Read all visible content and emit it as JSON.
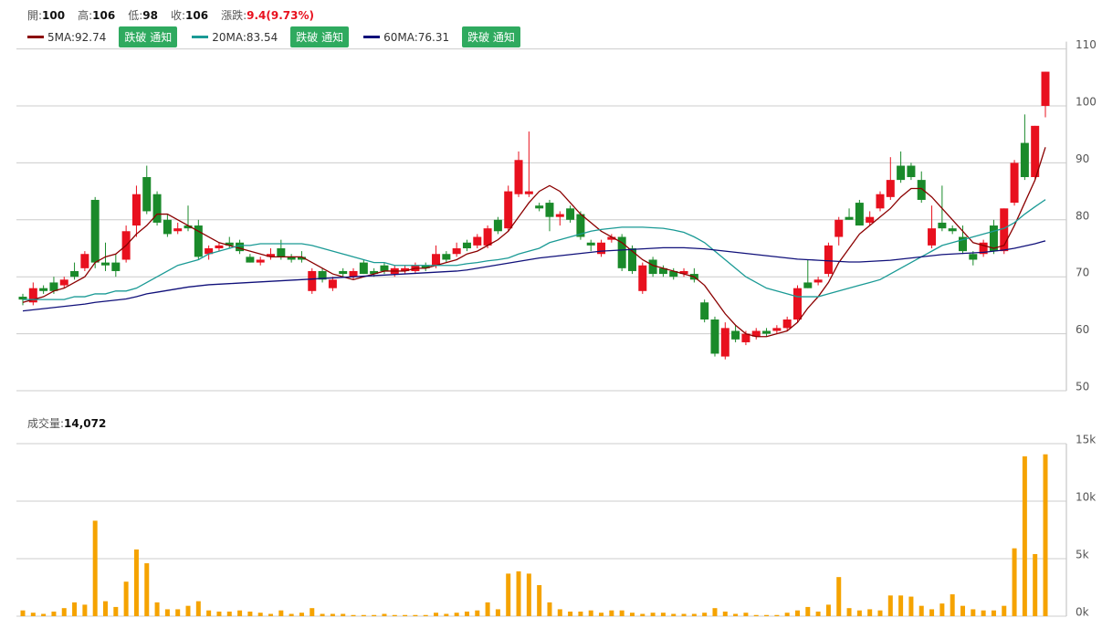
{
  "chart_data": [
    {
      "type": "candlestick",
      "stats": [
        {
          "label": "開:",
          "value": 100
        },
        {
          "label": "高:",
          "value": 106
        },
        {
          "label": "低:",
          "value": 98
        },
        {
          "label": "收:",
          "value": 106
        },
        {
          "label": "漲跌:",
          "value": "9.4(9.73%)"
        }
      ],
      "alert_button": "跌破 通知",
      "up_color": "#e8101e",
      "down_color": "#1a8a2a",
      "ylim": [
        50,
        110
      ],
      "yticks": [
        50,
        60,
        70,
        80,
        90,
        100,
        110
      ],
      "grid": true,
      "open": [
        66.5,
        65.5,
        68,
        69,
        68.5,
        71,
        71.5,
        83.5,
        72.5,
        72.5,
        73,
        79,
        87.5,
        84.5,
        80,
        78,
        79,
        79,
        74,
        75,
        76,
        76,
        73.5,
        72.5,
        73.5,
        75,
        73.5,
        73.5,
        67.5,
        71,
        68,
        71,
        70,
        72.5,
        71,
        72,
        70.5,
        71,
        71,
        72,
        72,
        74,
        74,
        76,
        75.5,
        75.5,
        80,
        78.5,
        84.5,
        84.5,
        82.5,
        83,
        80.5,
        82,
        81,
        76,
        74,
        76.5,
        77,
        75,
        67.5,
        73,
        71.5,
        71,
        70.5,
        70.5,
        65.5,
        62.5,
        56,
        60.5,
        58.5,
        59.5,
        60.5,
        60.5,
        61,
        62.5,
        69,
        69,
        70.5,
        77,
        80.5,
        83,
        79.5,
        82,
        84,
        89.5,
        89.5,
        87,
        75.5,
        79.5,
        78.5,
        77,
        74,
        74,
        79,
        74.5,
        83,
        93.5,
        87.5,
        100
      ],
      "high": [
        67,
        69,
        68.5,
        70,
        70,
        72.5,
        74.5,
        84,
        76,
        74,
        79,
        86,
        89.5,
        85,
        81,
        79.5,
        82.5,
        80,
        75.5,
        76,
        77,
        76.5,
        74,
        73.5,
        75,
        76.5,
        74,
        74.5,
        71.5,
        71.5,
        70,
        71.5,
        71.5,
        73,
        71.5,
        72.5,
        72,
        72,
        72.5,
        72.5,
        75.5,
        74.5,
        76,
        76.5,
        77.5,
        79,
        80.5,
        86,
        92,
        95.5,
        83,
        83.5,
        81.5,
        82.5,
        81.5,
        76.5,
        76.5,
        77.5,
        77.5,
        75.5,
        72.5,
        73.5,
        72,
        71.5,
        71.5,
        71.5,
        66,
        63,
        62,
        61.5,
        60.5,
        61,
        61,
        61.5,
        63,
        68.5,
        73,
        70,
        76,
        80.5,
        82,
        83.5,
        81.5,
        85,
        91,
        92,
        90,
        88.5,
        82.5,
        86,
        79,
        79,
        74.5,
        76.5,
        80,
        82,
        90.5,
        98.5,
        96.5,
        106
      ],
      "low": [
        65,
        65,
        67,
        67,
        68,
        69.5,
        71,
        71.5,
        71,
        70,
        72.5,
        77,
        81,
        79,
        77,
        77.5,
        78,
        73,
        73,
        74.5,
        75,
        74,
        72.5,
        72,
        73,
        73,
        72.5,
        72.5,
        67,
        69,
        67.5,
        70,
        69.5,
        70.5,
        70,
        70.5,
        70,
        70.5,
        70.5,
        71,
        71.5,
        72.5,
        73.5,
        74.5,
        75,
        75,
        77.5,
        78,
        84,
        84,
        81.5,
        78,
        79,
        79.5,
        76.5,
        74.5,
        73.5,
        76,
        71,
        70.5,
        67,
        70,
        70,
        69.5,
        70,
        69,
        62,
        56,
        55.5,
        58.5,
        58,
        59,
        59.5,
        60,
        60.5,
        62,
        68,
        68.5,
        70,
        75.5,
        80,
        79,
        79,
        81.5,
        83.5,
        86.5,
        87,
        83,
        75,
        78,
        77.5,
        74,
        72,
        73.5,
        74,
        74,
        82.5,
        87,
        87,
        98
      ],
      "close": [
        66,
        68,
        67.5,
        67.5,
        69.5,
        70,
        74,
        72.5,
        72,
        71,
        78,
        84.5,
        81.5,
        79.5,
        77.5,
        78.5,
        78.5,
        73.5,
        75,
        75.5,
        75.5,
        74.5,
        72.5,
        73,
        74,
        73.5,
        73,
        73,
        71,
        69.5,
        69.5,
        70.5,
        71,
        70.5,
        70.5,
        71,
        71.5,
        71.5,
        72,
        71.5,
        74,
        73,
        75,
        75,
        77,
        78.5,
        78,
        85,
        90.5,
        85,
        82,
        80.5,
        81,
        80,
        77,
        75.5,
        76,
        77,
        71.5,
        71,
        72,
        70.5,
        70.5,
        70,
        71,
        69.5,
        62.5,
        56.5,
        61,
        59,
        60,
        60.5,
        60,
        61,
        62.5,
        68,
        68,
        69.5,
        75.5,
        80,
        80,
        79,
        80.5,
        84.5,
        87,
        87,
        87.5,
        83.5,
        78.5,
        78.5,
        78,
        74.5,
        73,
        76,
        74.5,
        82,
        90,
        87.5,
        96.5,
        106
      ],
      "series": [
        {
          "name": "5MA:92.74",
          "color": "#8b0000",
          "values": [
            65.5,
            66,
            66.5,
            67.5,
            68,
            69,
            70,
            72.5,
            73.5,
            74,
            75.5,
            77.5,
            79,
            81,
            81,
            80,
            79,
            78,
            77,
            76,
            75.5,
            75,
            74.5,
            74,
            73.5,
            73.5,
            73.5,
            73.5,
            72.5,
            71.5,
            70.5,
            70,
            69.5,
            70,
            70.5,
            71,
            71,
            71,
            71.5,
            71.5,
            72,
            72.5,
            73,
            74,
            74.5,
            75.5,
            76.5,
            78,
            80.5,
            83,
            85,
            86,
            85,
            83,
            81,
            79.5,
            78,
            77,
            76,
            74.5,
            73,
            72,
            71.5,
            71,
            70.5,
            70,
            68.5,
            66,
            63.5,
            61.5,
            60,
            59.5,
            59.5,
            60,
            60.5,
            62,
            64.5,
            66.5,
            69,
            72.5,
            75,
            77.5,
            79,
            80.5,
            82,
            84,
            85.5,
            85.5,
            84,
            82,
            80,
            78,
            76,
            75.5,
            75,
            75.5,
            79,
            83,
            87,
            92.74
          ]
        },
        {
          "name": "20MA:83.54",
          "color": "#1a9a95",
          "values": [
            66,
            66,
            66,
            66,
            66,
            66.5,
            66.5,
            67,
            67,
            67.5,
            67.5,
            68,
            69,
            70,
            71,
            72,
            72.5,
            73,
            74,
            74.5,
            75,
            75.5,
            75.5,
            75.8,
            75.8,
            75.8,
            75.8,
            75.8,
            75.5,
            75,
            74.5,
            74,
            73.5,
            73,
            72.5,
            72.5,
            72,
            72,
            72,
            72,
            72,
            72,
            72,
            72.3,
            72.5,
            72.8,
            73,
            73.3,
            74,
            74.5,
            75,
            76,
            76.5,
            77,
            77.5,
            78,
            78.3,
            78.5,
            78.7,
            78.7,
            78.7,
            78.6,
            78.5,
            78.2,
            77.8,
            77,
            76,
            74.5,
            73,
            71.5,
            70,
            69,
            68,
            67.5,
            67,
            66.5,
            66.5,
            66.5,
            67,
            67.5,
            68,
            68.5,
            69,
            69.5,
            70.5,
            71.5,
            72.5,
            73.5,
            74.5,
            75.5,
            76,
            76.5,
            77,
            77.5,
            78,
            78.5,
            79.5,
            81,
            82.3,
            83.54
          ]
        },
        {
          "name": "60MA:76.31",
          "color": "#10107a",
          "values": [
            64,
            64.2,
            64.4,
            64.6,
            64.8,
            65,
            65.2,
            65.5,
            65.7,
            65.9,
            66.1,
            66.5,
            67,
            67.3,
            67.6,
            67.9,
            68.2,
            68.4,
            68.6,
            68.7,
            68.8,
            68.9,
            69,
            69.1,
            69.2,
            69.3,
            69.4,
            69.5,
            69.6,
            69.7,
            69.8,
            69.9,
            70,
            70.1,
            70.2,
            70.3,
            70.4,
            70.5,
            70.6,
            70.7,
            70.8,
            70.9,
            71,
            71.2,
            71.5,
            71.8,
            72.1,
            72.4,
            72.7,
            73,
            73.3,
            73.5,
            73.7,
            73.9,
            74.1,
            74.3,
            74.5,
            74.6,
            74.7,
            74.8,
            74.9,
            75,
            75.1,
            75.1,
            75.1,
            75,
            74.9,
            74.7,
            74.5,
            74.3,
            74.1,
            73.9,
            73.7,
            73.5,
            73.3,
            73.1,
            73,
            72.9,
            72.8,
            72.7,
            72.6,
            72.6,
            72.7,
            72.8,
            72.9,
            73.1,
            73.3,
            73.5,
            73.7,
            73.9,
            74,
            74.1,
            74.2,
            74.3,
            74.5,
            74.7,
            75,
            75.4,
            75.8,
            76.31
          ]
        }
      ]
    },
    {
      "type": "bar",
      "label": "成交量:",
      "current": "14,072",
      "color": "#f5a300",
      "ylim": [
        0,
        15000
      ],
      "grid": true,
      "yticks": [
        {
          "value": 0,
          "label": "0k"
        },
        {
          "value": 5000,
          "label": "5k"
        },
        {
          "value": 10000,
          "label": "10k"
        },
        {
          "value": 15000,
          "label": "15k"
        }
      ],
      "values": [
        500,
        300,
        200,
        400,
        700,
        1200,
        1000,
        8300,
        1300,
        800,
        3000,
        5800,
        4600,
        1200,
        600,
        600,
        900,
        1300,
        500,
        400,
        400,
        500,
        400,
        300,
        200,
        500,
        200,
        300,
        700,
        200,
        200,
        200,
        100,
        100,
        100,
        200,
        100,
        100,
        100,
        100,
        300,
        200,
        300,
        400,
        500,
        1200,
        600,
        3700,
        3900,
        3700,
        2700,
        1200,
        600,
        400,
        400,
        500,
        300,
        500,
        500,
        300,
        200,
        300,
        300,
        200,
        200,
        200,
        300,
        700,
        400,
        200,
        300,
        100,
        100,
        100,
        300,
        500,
        800,
        400,
        1000,
        3400,
        700,
        500,
        600,
        500,
        1800,
        1800,
        1700,
        900,
        600,
        1100,
        1900,
        900,
        600,
        500,
        500,
        900,
        5900,
        13900,
        5400,
        14072
      ]
    }
  ]
}
